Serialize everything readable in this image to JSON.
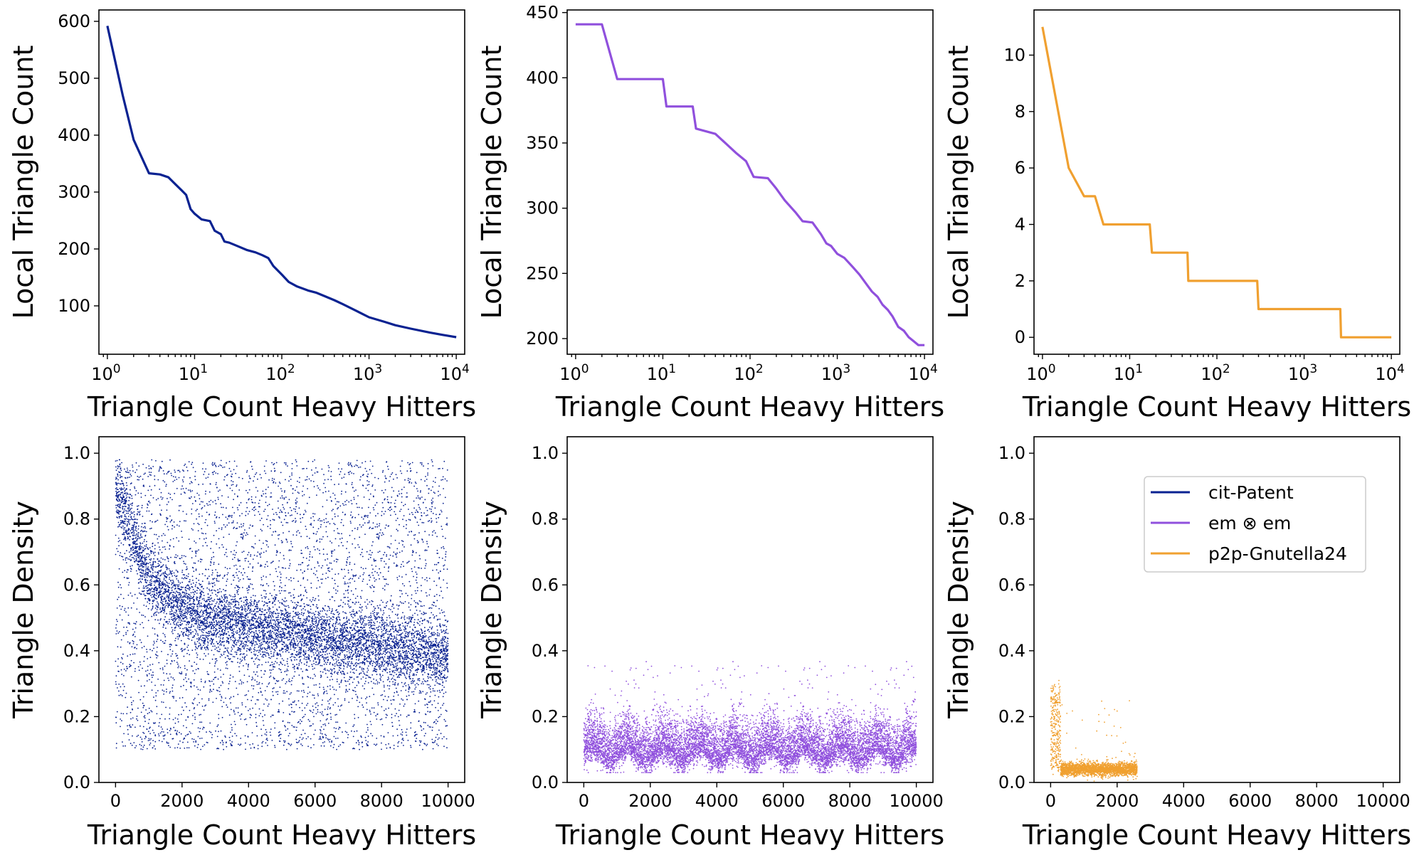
{
  "colors": {
    "cit_patent": "#0a2291",
    "em_em": "#9050dd",
    "p2p": "#f0a030"
  },
  "legend": {
    "placement": "upper-right of bottom-right panel",
    "entries": [
      "cit-Patent",
      "em ⊗ em",
      "p2p-Gnutella24"
    ]
  },
  "chart_data": [
    {
      "id": "top-left",
      "type": "line",
      "xlabel": "Triangle Count Heavy Hitters",
      "ylabel": "Local Triangle Count",
      "xscale": "log",
      "xlim": [
        0.8,
        12500
      ],
      "ylim": [
        15,
        620
      ],
      "xticks": [
        1,
        10,
        100,
        1000,
        10000
      ],
      "xtick_labels": [
        {
          "base": "10",
          "exp": "0"
        },
        {
          "base": "10",
          "exp": "1"
        },
        {
          "base": "10",
          "exp": "2"
        },
        {
          "base": "10",
          "exp": "3"
        },
        {
          "base": "10",
          "exp": "4"
        }
      ],
      "yticks": [
        100,
        200,
        300,
        400,
        500,
        600
      ],
      "ytick_labels": [
        "100",
        "200",
        "300",
        "400",
        "500",
        "600"
      ],
      "series": [
        {
          "color_key": "cit_patent",
          "x": [
            1,
            1.5,
            2,
            3,
            4,
            5,
            6,
            7,
            8,
            9,
            10,
            12,
            15,
            17,
            20,
            22,
            25,
            30,
            40,
            50,
            60,
            70,
            80,
            100,
            120,
            150,
            200,
            250,
            300,
            400,
            500,
            700,
            1000,
            1500,
            2000,
            3000,
            5000,
            7000,
            10000
          ],
          "y": [
            592,
            470,
            392,
            333,
            331,
            326,
            314,
            304,
            295,
            270,
            262,
            252,
            249,
            232,
            226,
            213,
            211,
            206,
            198,
            194,
            189,
            184,
            170,
            155,
            142,
            134,
            127,
            123,
            118,
            110,
            103,
            92,
            80,
            72,
            66,
            60,
            53,
            49,
            45
          ]
        }
      ]
    },
    {
      "id": "top-middle",
      "type": "line",
      "xlabel": "Triangle Count Heavy Hitters",
      "ylabel": "Local Triangle Count",
      "xscale": "log",
      "xlim": [
        0.8,
        12500
      ],
      "ylim": [
        188,
        452
      ],
      "xticks": [
        1,
        10,
        100,
        1000,
        10000
      ],
      "xtick_labels": [
        {
          "base": "10",
          "exp": "0"
        },
        {
          "base": "10",
          "exp": "1"
        },
        {
          "base": "10",
          "exp": "2"
        },
        {
          "base": "10",
          "exp": "3"
        },
        {
          "base": "10",
          "exp": "4"
        }
      ],
      "yticks": [
        200,
        250,
        300,
        350,
        400,
        450
      ],
      "ytick_labels": [
        "200",
        "250",
        "300",
        "350",
        "400",
        "450"
      ],
      "series": [
        {
          "color_key": "em_em",
          "x": [
            1,
            2,
            3,
            10,
            11,
            22,
            24,
            40,
            70,
            90,
            110,
            160,
            200,
            250,
            330,
            400,
            520,
            650,
            750,
            850,
            1000,
            1200,
            1500,
            1800,
            2200,
            2500,
            2900,
            3300,
            3800,
            4300,
            5000,
            5800,
            6600,
            7500,
            8500,
            10000
          ],
          "y": [
            441,
            441,
            399,
            399,
            378,
            378,
            361,
            357,
            342,
            336,
            324,
            323,
            315,
            306,
            297,
            290,
            289,
            280,
            273,
            271,
            265,
            262,
            255,
            249,
            241,
            236,
            232,
            226,
            222,
            217,
            209,
            206,
            201,
            198,
            195,
            195
          ]
        }
      ]
    },
    {
      "id": "top-right",
      "type": "line",
      "xlabel": "Triangle Count Heavy Hitters",
      "ylabel": "Local Triangle Count",
      "xscale": "log",
      "xlim": [
        0.8,
        12500
      ],
      "ylim": [
        -0.6,
        11.6
      ],
      "xticks": [
        1,
        10,
        100,
        1000,
        10000
      ],
      "xtick_labels": [
        {
          "base": "10",
          "exp": "0"
        },
        {
          "base": "10",
          "exp": "1"
        },
        {
          "base": "10",
          "exp": "2"
        },
        {
          "base": "10",
          "exp": "3"
        },
        {
          "base": "10",
          "exp": "4"
        }
      ],
      "yticks": [
        0,
        2,
        4,
        6,
        8,
        10
      ],
      "ytick_labels": [
        "0",
        "2",
        "4",
        "6",
        "8",
        "10"
      ],
      "series": [
        {
          "color_key": "p2p",
          "x": [
            1,
            2,
            3,
            4,
            5,
            17,
            18,
            46,
            47,
            290,
            300,
            2600,
            2650,
            10000
          ],
          "y": [
            11,
            6,
            5,
            5,
            4,
            4,
            3,
            3,
            2,
            2,
            1,
            1,
            0,
            0
          ]
        }
      ]
    },
    {
      "id": "bottom-left",
      "type": "scatter",
      "xlabel": "Triangle Count Heavy Hitters",
      "ylabel": "Triangle Density",
      "xlim": [
        -500,
        10500
      ],
      "ylim": [
        0,
        1.05
      ],
      "xticks": [
        0,
        2000,
        4000,
        6000,
        8000,
        10000
      ],
      "xtick_labels": [
        "0",
        "2000",
        "4000",
        "6000",
        "8000",
        "10000"
      ],
      "yticks": [
        0.0,
        0.2,
        0.4,
        0.6,
        0.8,
        1.0
      ],
      "ytick_labels": [
        "0.0",
        "0.2",
        "0.4",
        "0.6",
        "0.8",
        "1.0"
      ],
      "series": [
        {
          "color_key": "cit_patent",
          "n_points": 10000,
          "x_range": [
            1,
            10000
          ],
          "trend_x": [
            0,
            500,
            1000,
            2000,
            3000,
            4000,
            6000,
            8000,
            10000
          ],
          "trend_y": [
            0.9,
            0.75,
            0.62,
            0.53,
            0.49,
            0.47,
            0.44,
            0.41,
            0.38
          ],
          "density_range": [
            0.1,
            0.98
          ]
        }
      ]
    },
    {
      "id": "bottom-middle",
      "type": "scatter",
      "xlabel": "Triangle Count Heavy Hitters",
      "ylabel": "Triangle Density",
      "xlim": [
        -500,
        10500
      ],
      "ylim": [
        0,
        1.05
      ],
      "xticks": [
        0,
        2000,
        4000,
        6000,
        8000,
        10000
      ],
      "xtick_labels": [
        "0",
        "2000",
        "4000",
        "6000",
        "8000",
        "10000"
      ],
      "yticks": [
        0.0,
        0.2,
        0.4,
        0.6,
        0.8,
        1.0
      ],
      "ytick_labels": [
        "0.0",
        "0.2",
        "0.4",
        "0.6",
        "0.8",
        "1.0"
      ],
      "series": [
        {
          "color_key": "em_em",
          "n_points": 10000,
          "x_range": [
            1,
            10000
          ],
          "typical_y": 0.1,
          "density_range": [
            0.03,
            0.37
          ]
        }
      ]
    },
    {
      "id": "bottom-right",
      "type": "scatter",
      "xlabel": "Triangle Count Heavy Hitters",
      "ylabel": "Triangle Density",
      "xlim": [
        -500,
        10500
      ],
      "ylim": [
        0,
        1.05
      ],
      "xticks": [
        0,
        2000,
        4000,
        6000,
        8000,
        10000
      ],
      "xtick_labels": [
        "0",
        "2000",
        "4000",
        "6000",
        "8000",
        "10000"
      ],
      "yticks": [
        0.0,
        0.2,
        0.4,
        0.6,
        0.8,
        1.0
      ],
      "ytick_labels": [
        "0.0",
        "0.2",
        "0.4",
        "0.6",
        "0.8",
        "1.0"
      ],
      "series": [
        {
          "color_key": "p2p",
          "n_points": 2600,
          "x_range": [
            1,
            2600
          ],
          "typical_y": 0.04,
          "density_range": [
            0.0,
            0.4
          ]
        }
      ]
    }
  ]
}
